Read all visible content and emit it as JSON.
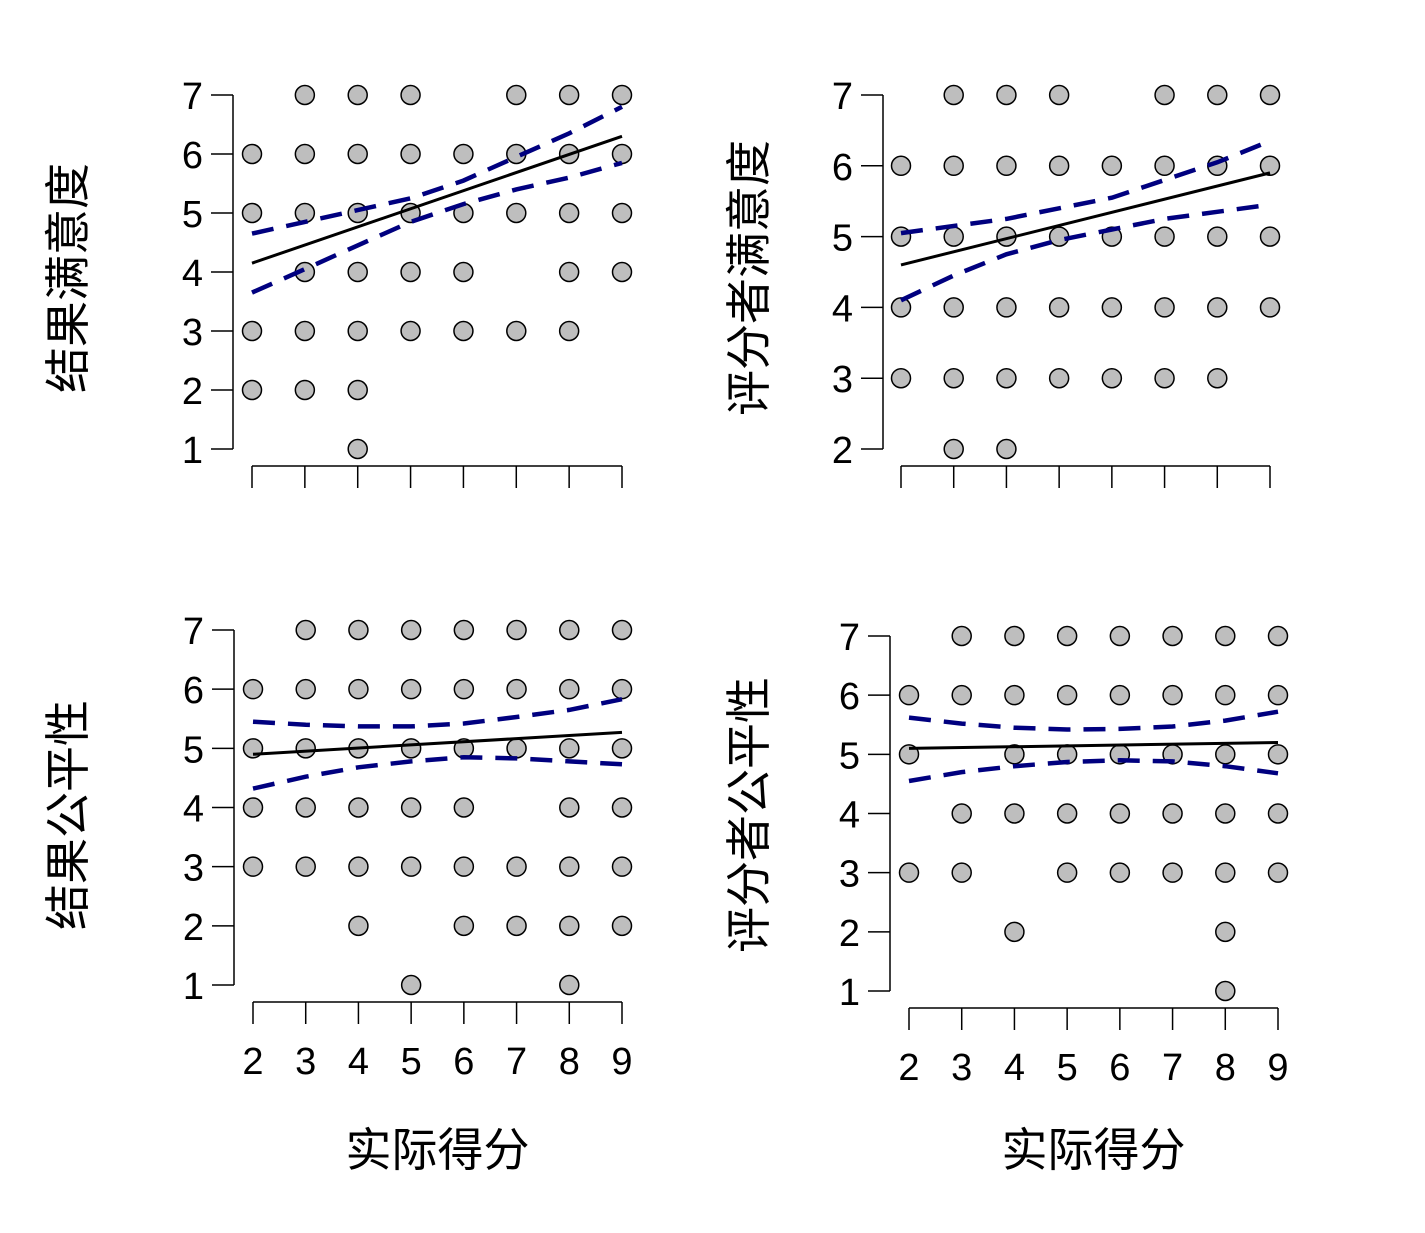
{
  "figure": {
    "background": "#ffffff",
    "point_fill": "#bebebe",
    "point_stroke": "#000000",
    "fit_color": "#000000",
    "ci_color": "#00007f"
  },
  "chart_data": [
    {
      "type": "scatter",
      "panel": "top-left",
      "title": "",
      "xlabel": "",
      "ylabel": "结果满意度",
      "x_ticks": [
        2,
        3,
        4,
        5,
        6,
        7,
        8,
        9
      ],
      "x_tick_labels_shown": false,
      "y_ticks": [
        1,
        2,
        3,
        4,
        5,
        6,
        7
      ],
      "xlim": [
        2,
        9
      ],
      "ylim": [
        1,
        7
      ],
      "grid": false,
      "points": [
        [
          2,
          2
        ],
        [
          2,
          3
        ],
        [
          2,
          5
        ],
        [
          2,
          6
        ],
        [
          3,
          2
        ],
        [
          3,
          3
        ],
        [
          3,
          4
        ],
        [
          3,
          5
        ],
        [
          3,
          6
        ],
        [
          3,
          7
        ],
        [
          4,
          1
        ],
        [
          4,
          2
        ],
        [
          4,
          3
        ],
        [
          4,
          4
        ],
        [
          4,
          5
        ],
        [
          4,
          6
        ],
        [
          4,
          7
        ],
        [
          5,
          3
        ],
        [
          5,
          4
        ],
        [
          5,
          5
        ],
        [
          5,
          6
        ],
        [
          5,
          7
        ],
        [
          6,
          3
        ],
        [
          6,
          4
        ],
        [
          6,
          5
        ],
        [
          6,
          6
        ],
        [
          7,
          3
        ],
        [
          7,
          5
        ],
        [
          7,
          6
        ],
        [
          7,
          7
        ],
        [
          8,
          3
        ],
        [
          8,
          4
        ],
        [
          8,
          5
        ],
        [
          8,
          6
        ],
        [
          8,
          7
        ],
        [
          9,
          4
        ],
        [
          9,
          5
        ],
        [
          9,
          6
        ],
        [
          9,
          7
        ]
      ],
      "fit": [
        [
          2,
          4.15
        ],
        [
          9,
          6.3
        ]
      ],
      "ci_lower": [
        [
          2,
          3.65
        ],
        [
          3,
          4.05
        ],
        [
          4,
          4.45
        ],
        [
          5,
          4.85
        ],
        [
          6,
          5.15
        ],
        [
          7,
          5.4
        ],
        [
          8,
          5.6
        ],
        [
          9,
          5.85
        ]
      ],
      "ci_upper": [
        [
          2,
          4.65
        ],
        [
          3,
          4.85
        ],
        [
          4,
          5.05
        ],
        [
          5,
          5.25
        ],
        [
          6,
          5.55
        ],
        [
          7,
          5.95
        ],
        [
          8,
          6.35
        ],
        [
          9,
          6.8
        ]
      ]
    },
    {
      "type": "scatter",
      "panel": "top-right",
      "title": "",
      "xlabel": "",
      "ylabel": "评分者满意度",
      "x_ticks": [
        2,
        3,
        4,
        5,
        6,
        7,
        8,
        9
      ],
      "x_tick_labels_shown": false,
      "y_ticks": [
        2,
        3,
        4,
        5,
        6,
        7
      ],
      "xlim": [
        2,
        9
      ],
      "ylim": [
        2,
        7
      ],
      "grid": false,
      "points": [
        [
          2,
          3
        ],
        [
          2,
          4
        ],
        [
          2,
          5
        ],
        [
          2,
          6
        ],
        [
          3,
          2
        ],
        [
          3,
          3
        ],
        [
          3,
          4
        ],
        [
          3,
          5
        ],
        [
          3,
          6
        ],
        [
          3,
          7
        ],
        [
          4,
          2
        ],
        [
          4,
          3
        ],
        [
          4,
          4
        ],
        [
          4,
          5
        ],
        [
          4,
          6
        ],
        [
          4,
          7
        ],
        [
          5,
          3
        ],
        [
          5,
          4
        ],
        [
          5,
          5
        ],
        [
          5,
          6
        ],
        [
          5,
          7
        ],
        [
          6,
          3
        ],
        [
          6,
          4
        ],
        [
          6,
          5
        ],
        [
          6,
          6
        ],
        [
          7,
          3
        ],
        [
          7,
          4
        ],
        [
          7,
          5
        ],
        [
          7,
          6
        ],
        [
          7,
          7
        ],
        [
          8,
          3
        ],
        [
          8,
          4
        ],
        [
          8,
          5
        ],
        [
          8,
          6
        ],
        [
          8,
          7
        ],
        [
          9,
          4
        ],
        [
          9,
          5
        ],
        [
          9,
          6
        ],
        [
          9,
          7
        ]
      ],
      "fit": [
        [
          2,
          4.6
        ],
        [
          9,
          5.9
        ]
      ],
      "ci_lower": [
        [
          2,
          4.1
        ],
        [
          3,
          4.45
        ],
        [
          4,
          4.75
        ],
        [
          5,
          4.95
        ],
        [
          6,
          5.1
        ],
        [
          7,
          5.25
        ],
        [
          8,
          5.35
        ],
        [
          9,
          5.45
        ]
      ],
      "ci_upper": [
        [
          2,
          5.05
        ],
        [
          3,
          5.15
        ],
        [
          4,
          5.25
        ],
        [
          5,
          5.4
        ],
        [
          6,
          5.55
        ],
        [
          7,
          5.8
        ],
        [
          8,
          6.05
        ],
        [
          9,
          6.35
        ]
      ]
    },
    {
      "type": "scatter",
      "panel": "bottom-left",
      "title": "",
      "xlabel": "实际得分",
      "ylabel": "结果公平性",
      "x_ticks": [
        2,
        3,
        4,
        5,
        6,
        7,
        8,
        9
      ],
      "x_tick_labels_shown": true,
      "y_ticks": [
        1,
        2,
        3,
        4,
        5,
        6,
        7
      ],
      "xlim": [
        2,
        9
      ],
      "ylim": [
        1,
        7
      ],
      "grid": false,
      "points": [
        [
          2,
          3
        ],
        [
          2,
          4
        ],
        [
          2,
          5
        ],
        [
          2,
          6
        ],
        [
          3,
          3
        ],
        [
          3,
          4
        ],
        [
          3,
          5
        ],
        [
          3,
          6
        ],
        [
          3,
          7
        ],
        [
          4,
          2
        ],
        [
          4,
          3
        ],
        [
          4,
          4
        ],
        [
          4,
          5
        ],
        [
          4,
          6
        ],
        [
          4,
          7
        ],
        [
          5,
          1
        ],
        [
          5,
          3
        ],
        [
          5,
          4
        ],
        [
          5,
          5
        ],
        [
          5,
          6
        ],
        [
          5,
          7
        ],
        [
          6,
          2
        ],
        [
          6,
          3
        ],
        [
          6,
          4
        ],
        [
          6,
          5
        ],
        [
          6,
          6
        ],
        [
          6,
          7
        ],
        [
          7,
          2
        ],
        [
          7,
          3
        ],
        [
          7,
          5
        ],
        [
          7,
          6
        ],
        [
          7,
          7
        ],
        [
          8,
          1
        ],
        [
          8,
          2
        ],
        [
          8,
          3
        ],
        [
          8,
          4
        ],
        [
          8,
          5
        ],
        [
          8,
          6
        ],
        [
          8,
          7
        ],
        [
          9,
          2
        ],
        [
          9,
          3
        ],
        [
          9,
          4
        ],
        [
          9,
          5
        ],
        [
          9,
          6
        ],
        [
          9,
          7
        ]
      ],
      "fit": [
        [
          2,
          4.9
        ],
        [
          9,
          5.27
        ]
      ],
      "ci_lower": [
        [
          2,
          4.32
        ],
        [
          3,
          4.52
        ],
        [
          4,
          4.68
        ],
        [
          5,
          4.78
        ],
        [
          6,
          4.85
        ],
        [
          7,
          4.83
        ],
        [
          8,
          4.78
        ],
        [
          9,
          4.73
        ]
      ],
      "ci_upper": [
        [
          2,
          5.45
        ],
        [
          3,
          5.4
        ],
        [
          4,
          5.37
        ],
        [
          5,
          5.37
        ],
        [
          6,
          5.42
        ],
        [
          7,
          5.53
        ],
        [
          8,
          5.65
        ],
        [
          9,
          5.83
        ]
      ]
    },
    {
      "type": "scatter",
      "panel": "bottom-right",
      "title": "",
      "xlabel": "实际得分",
      "ylabel": "评分者公平性",
      "x_ticks": [
        2,
        3,
        4,
        5,
        6,
        7,
        8,
        9
      ],
      "x_tick_labels_shown": true,
      "y_ticks": [
        1,
        2,
        3,
        4,
        5,
        6,
        7
      ],
      "xlim": [
        2,
        9
      ],
      "ylim": [
        1,
        7
      ],
      "grid": false,
      "points": [
        [
          2,
          3
        ],
        [
          2,
          5
        ],
        [
          2,
          6
        ],
        [
          3,
          3
        ],
        [
          3,
          4
        ],
        [
          3,
          6
        ],
        [
          3,
          7
        ],
        [
          4,
          2
        ],
        [
          4,
          4
        ],
        [
          4,
          5
        ],
        [
          4,
          6
        ],
        [
          4,
          7
        ],
        [
          5,
          3
        ],
        [
          5,
          4
        ],
        [
          5,
          5
        ],
        [
          5,
          6
        ],
        [
          5,
          7
        ],
        [
          6,
          3
        ],
        [
          6,
          4
        ],
        [
          6,
          5
        ],
        [
          6,
          6
        ],
        [
          6,
          7
        ],
        [
          7,
          3
        ],
        [
          7,
          4
        ],
        [
          7,
          5
        ],
        [
          7,
          6
        ],
        [
          7,
          7
        ],
        [
          8,
          1
        ],
        [
          8,
          2
        ],
        [
          8,
          3
        ],
        [
          8,
          4
        ],
        [
          8,
          5
        ],
        [
          8,
          6
        ],
        [
          8,
          7
        ],
        [
          9,
          3
        ],
        [
          9,
          4
        ],
        [
          9,
          5
        ],
        [
          9,
          6
        ],
        [
          9,
          7
        ]
      ],
      "fit": [
        [
          2,
          5.1
        ],
        [
          9,
          5.2
        ]
      ],
      "ci_lower": [
        [
          2,
          4.55
        ],
        [
          3,
          4.7
        ],
        [
          4,
          4.8
        ],
        [
          5,
          4.87
        ],
        [
          6,
          4.9
        ],
        [
          7,
          4.88
        ],
        [
          8,
          4.8
        ],
        [
          9,
          4.68
        ]
      ],
      "ci_upper": [
        [
          2,
          5.62
        ],
        [
          3,
          5.52
        ],
        [
          4,
          5.45
        ],
        [
          5,
          5.42
        ],
        [
          6,
          5.43
        ],
        [
          7,
          5.47
        ],
        [
          8,
          5.57
        ],
        [
          9,
          5.72
        ]
      ]
    }
  ]
}
